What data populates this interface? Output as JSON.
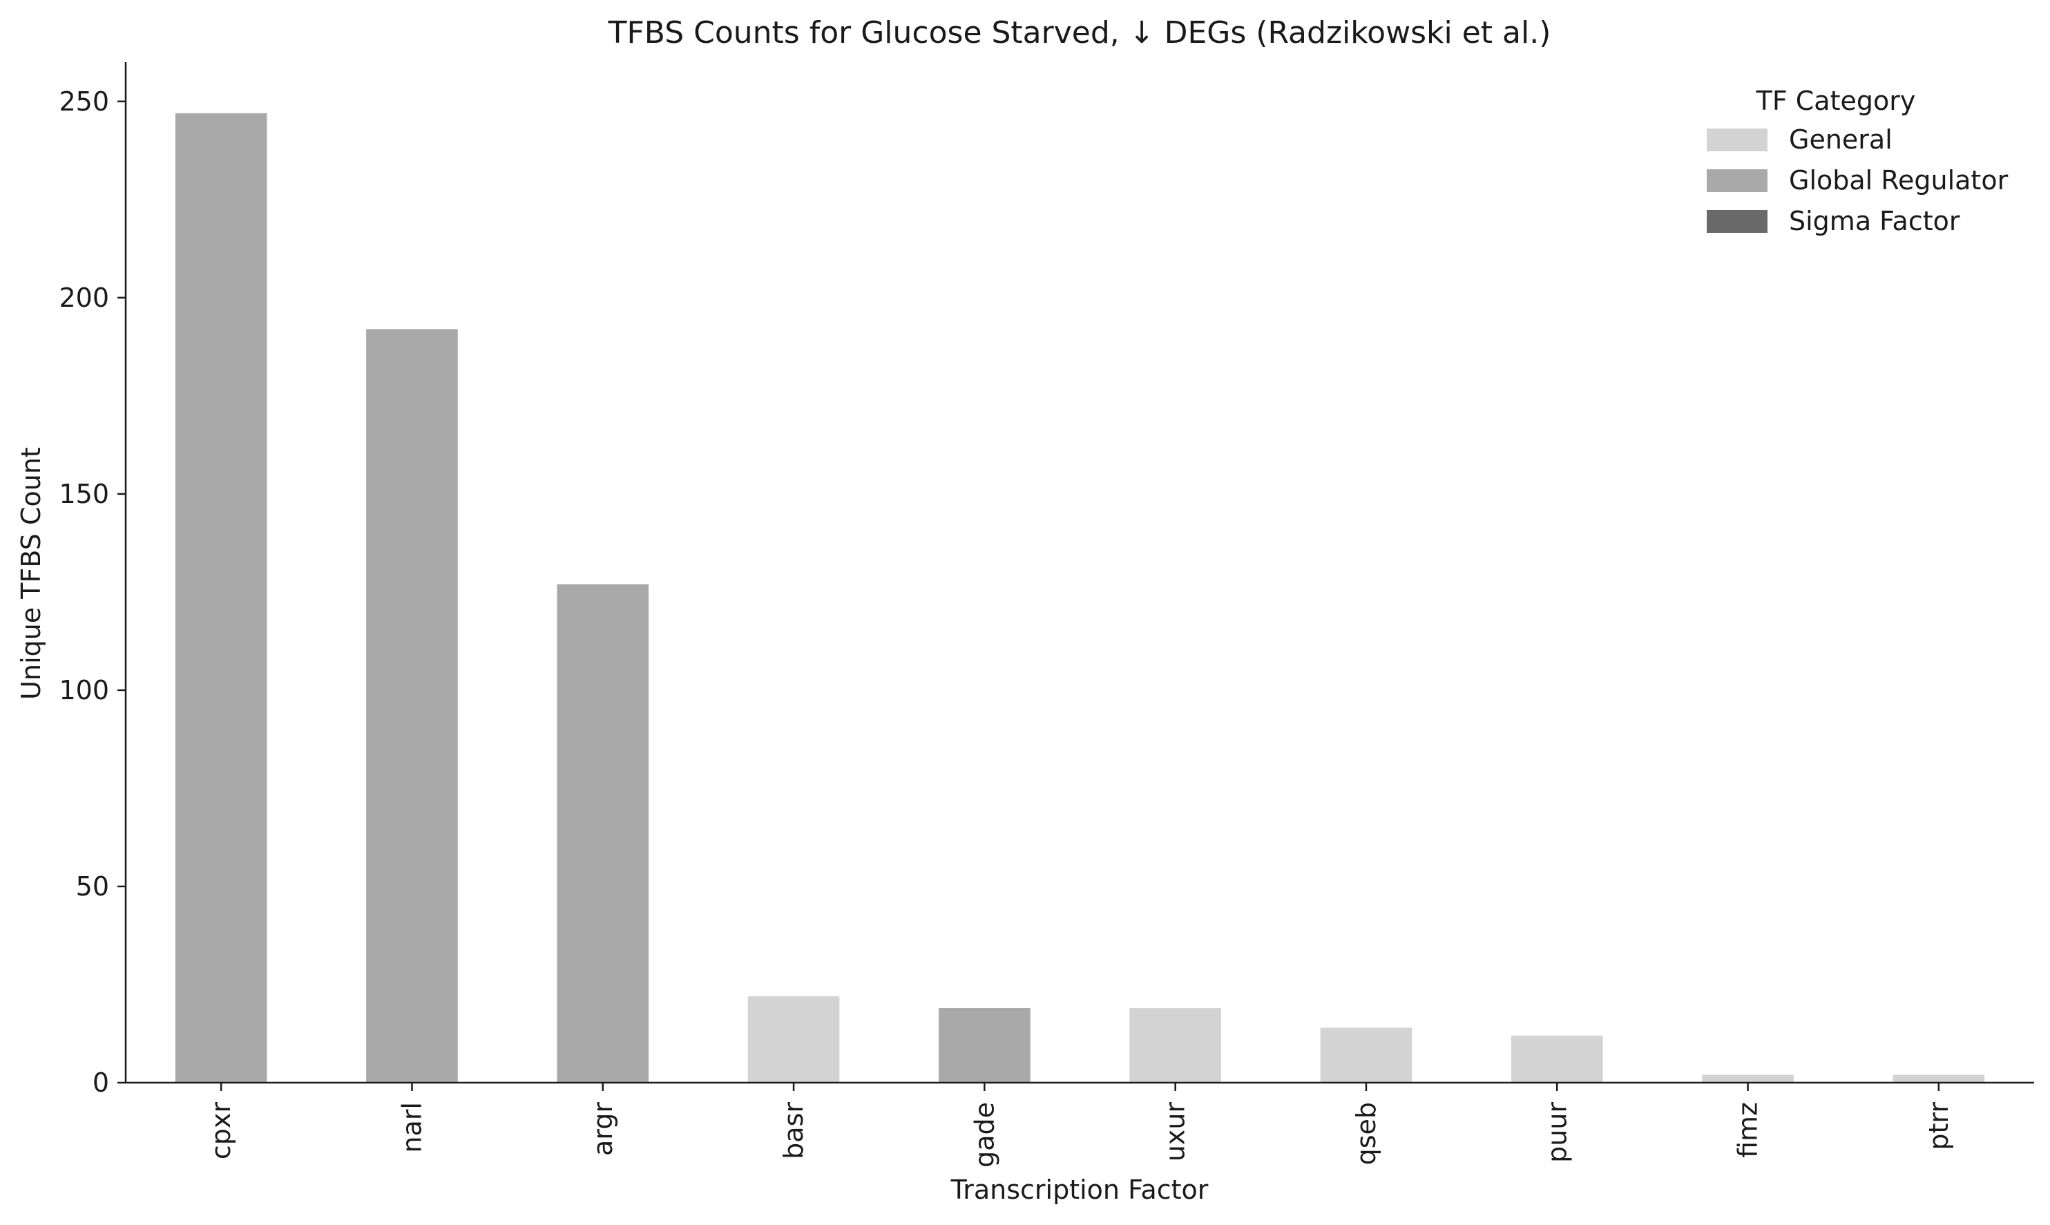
{
  "chart_data": {
    "type": "bar",
    "title": "TFBS Counts for Glucose Starved, ↓ DEGs (Radzikowski et al.)",
    "xlabel": "Transcription Factor",
    "ylabel": "Unique TFBS Count",
    "ylim": [
      0,
      260
    ],
    "yticks": [
      0,
      50,
      100,
      150,
      200,
      250
    ],
    "grid": false,
    "legend_position": "top-right",
    "categories": [
      "cpxr",
      "narl",
      "argr",
      "basr",
      "gade",
      "uxur",
      "qseb",
      "puur",
      "fimz",
      "ptrr"
    ],
    "values": [
      247,
      192,
      127,
      22,
      19,
      19,
      14,
      12,
      2,
      2
    ],
    "bar_categories": [
      "Global Regulator",
      "Global Regulator",
      "Global Regulator",
      "General",
      "Global Regulator",
      "General",
      "General",
      "General",
      "General",
      "General"
    ],
    "legend": {
      "title": "TF Category",
      "items": [
        {
          "label": "General",
          "color": "#d3d3d3"
        },
        {
          "label": "Global Regulator",
          "color": "#a9a9a9"
        },
        {
          "label": "Sigma Factor",
          "color": "#696969"
        }
      ]
    }
  }
}
